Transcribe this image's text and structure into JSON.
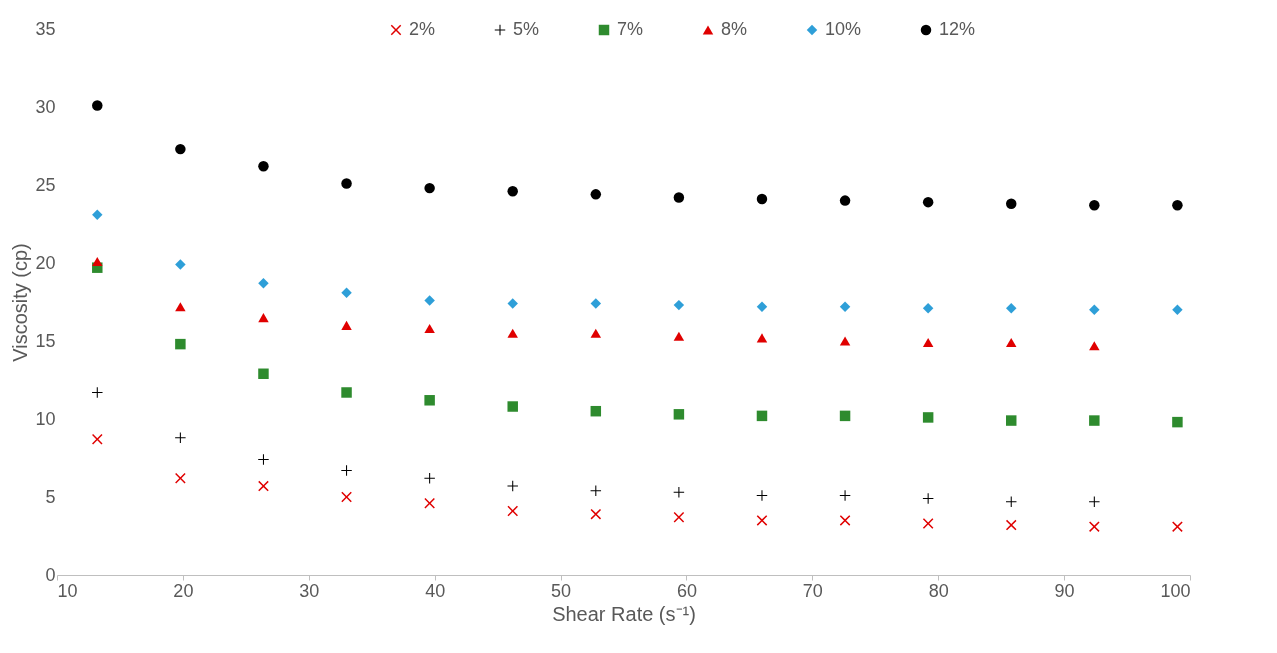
{
  "chart_data": {
    "type": "scatter",
    "xlabel": "Shear Rate (s⁻¹)",
    "ylabel": "Viscosity (cp)",
    "x": [
      13.2,
      19.8,
      26.4,
      33.0,
      39.6,
      46.2,
      52.8,
      59.4,
      66.0,
      72.6,
      79.2,
      85.8,
      92.4,
      99.0
    ],
    "series": [
      {
        "name": "2%",
        "color": "#e00000",
        "marker": "x",
        "values": [
          8.7,
          6.2,
          5.7,
          5.0,
          4.6,
          4.1,
          3.9,
          3.7,
          3.5,
          3.5,
          3.3,
          3.2,
          3.1,
          3.1
        ]
      },
      {
        "name": "5%",
        "color": "#000000",
        "marker": "plus",
        "values": [
          11.7,
          8.8,
          7.4,
          6.7,
          6.2,
          5.7,
          5.4,
          5.3,
          5.1,
          5.1,
          4.9,
          4.7,
          4.7,
          null
        ]
      },
      {
        "name": "7%",
        "color": "#2e8b2e",
        "marker": "square",
        "values": [
          19.7,
          14.8,
          12.9,
          11.7,
          11.2,
          10.8,
          10.5,
          10.3,
          10.2,
          10.2,
          10.1,
          9.9,
          9.9,
          9.8
        ]
      },
      {
        "name": "8%",
        "color": "#e00000",
        "marker": "triangle",
        "values": [
          20.1,
          17.2,
          16.5,
          16.0,
          15.8,
          15.5,
          15.5,
          15.3,
          15.2,
          15.0,
          14.9,
          14.9,
          14.7,
          null
        ]
      },
      {
        "name": "10%",
        "color": "#2e9fd8",
        "marker": "diamond",
        "values": [
          23.1,
          19.9,
          18.7,
          18.1,
          17.6,
          17.4,
          17.4,
          17.3,
          17.2,
          17.2,
          17.1,
          17.1,
          17.0,
          17.0
        ]
      },
      {
        "name": "12%",
        "color": "#000000",
        "marker": "circle",
        "values": [
          30.1,
          27.3,
          26.2,
          25.1,
          24.8,
          24.6,
          24.4,
          24.2,
          24.1,
          24.0,
          23.9,
          23.8,
          23.7,
          23.7
        ]
      }
    ],
    "xlim": [
      10,
      100
    ],
    "xticks": [
      10,
      20,
      30,
      40,
      50,
      60,
      70,
      80,
      90,
      100
    ],
    "ylim": [
      0,
      35
    ],
    "yticks": [
      0,
      5,
      10,
      15,
      20,
      25,
      30,
      35
    ],
    "grid": false,
    "legend": "top"
  }
}
